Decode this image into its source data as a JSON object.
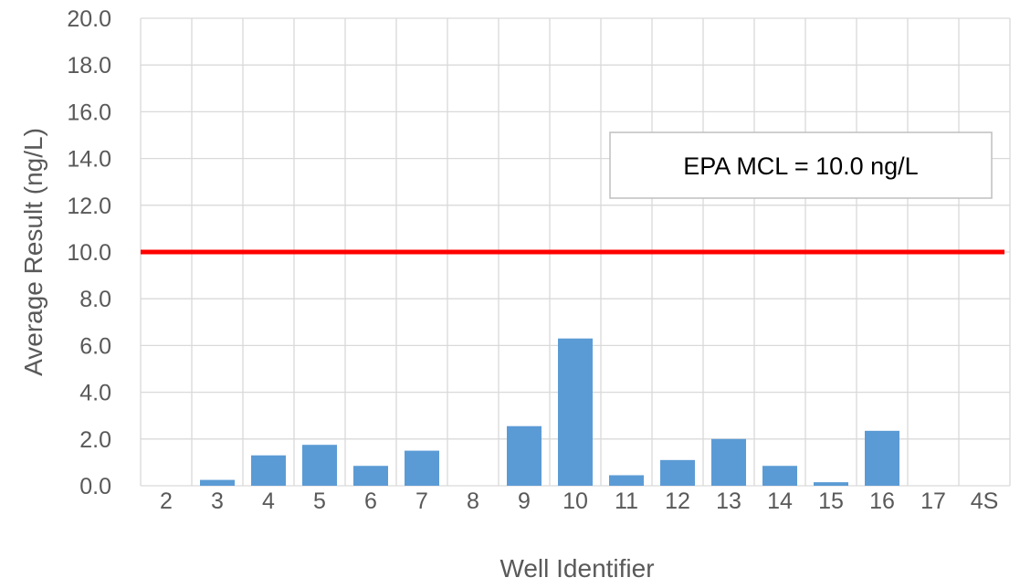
{
  "chart_data": {
    "type": "bar",
    "title": "",
    "xlabel": "Well Identifier",
    "ylabel": "Average Result (ng/L)",
    "categories": [
      "2",
      "3",
      "4",
      "5",
      "6",
      "7",
      "8",
      "9",
      "10",
      "11",
      "12",
      "13",
      "14",
      "15",
      "16",
      "17",
      "4S"
    ],
    "values": [
      0.0,
      0.25,
      1.3,
      1.75,
      0.85,
      1.5,
      0.0,
      2.55,
      6.3,
      0.45,
      1.1,
      2.0,
      0.85,
      0.15,
      2.35,
      0.0,
      0.0
    ],
    "ylim": [
      0,
      20
    ],
    "ytick_step": 2,
    "ytick_labels": [
      "0.0",
      "2.0",
      "4.0",
      "6.0",
      "8.0",
      "10.0",
      "12.0",
      "14.0",
      "16.0",
      "18.0",
      "20.0"
    ],
    "grid": true,
    "bar_color": "#5B9BD5",
    "reference_line": {
      "value": 10.0,
      "color": "#FF0000",
      "label": "EPA MCL = 10.0 ng/L"
    }
  }
}
